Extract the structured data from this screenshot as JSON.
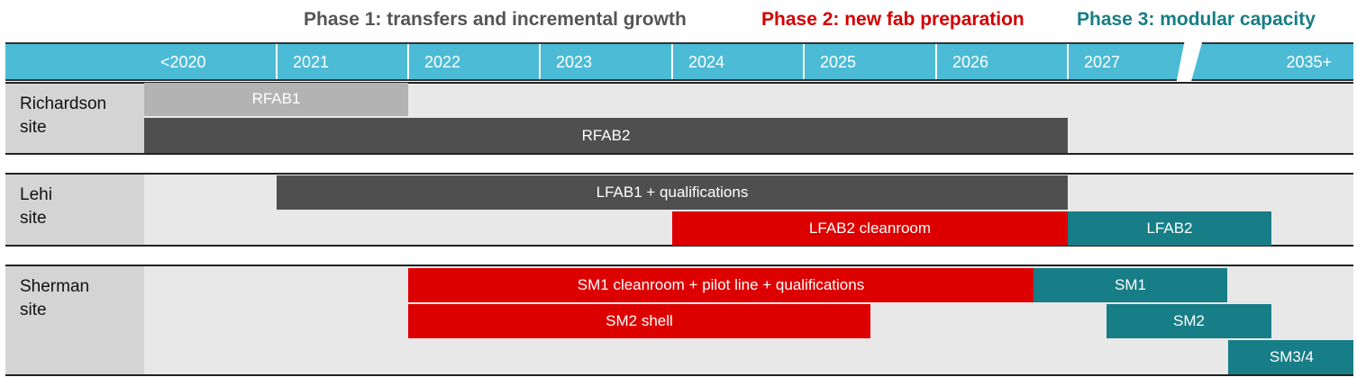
{
  "phases": [
    {
      "label": "Phase 1: transfers and incremental growth",
      "color": "#555555"
    },
    {
      "label": "Phase 2: new fab preparation",
      "color": "#d40000"
    },
    {
      "label": "Phase 3: modular capacity",
      "color": "#177d86"
    }
  ],
  "chart_data": {
    "type": "gantt",
    "timeline": [
      "<2020",
      "2021",
      "2022",
      "2023",
      "2024",
      "2025",
      "2026",
      "2027",
      "2035+"
    ],
    "sites": [
      {
        "label": "Richardson\nsite",
        "tasks": [
          {
            "label": "RFAB1",
            "start": "<2020",
            "end": "2022",
            "phase": "legacy",
            "color": "#b3b3b3"
          },
          {
            "label": "RFAB2",
            "start": "<2020",
            "end": "2027",
            "phase": "Phase 1",
            "color": "#4f4f4f"
          }
        ]
      },
      {
        "label": "Lehi\nsite",
        "tasks": [
          {
            "label": "LFAB1 + qualifications",
            "start": "2021",
            "end": "2027",
            "phase": "Phase 1",
            "color": "#4f4f4f"
          },
          {
            "label": "LFAB2 cleanroom",
            "start": "2024",
            "end": "2027",
            "phase": "Phase 2",
            "color": "#dd0000"
          },
          {
            "label": "LFAB2",
            "start": "2027",
            "end": "2035+",
            "phase": "Phase 3",
            "color": "#177d86"
          }
        ]
      },
      {
        "label": "Sherman\nsite",
        "tasks": [
          {
            "label": "SM1 cleanroom + pilot line + qualifications",
            "start": "2022",
            "end": "2027",
            "phase": "Phase 2",
            "color": "#dd0000"
          },
          {
            "label": "SM1",
            "start": "2027",
            "end": "2035+",
            "phase": "Phase 3",
            "color": "#177d86"
          },
          {
            "label": "SM2 shell",
            "start": "2022",
            "end": "2026",
            "phase": "Phase 2",
            "color": "#dd0000"
          },
          {
            "label": "SM2",
            "start": "2027",
            "end": "2035+",
            "phase": "Phase 3",
            "color": "#177d86"
          },
          {
            "label": "SM3/4",
            "start": "2035+",
            "end": "2035+",
            "phase": "Phase 3",
            "color": "#177d86"
          }
        ]
      }
    ]
  }
}
